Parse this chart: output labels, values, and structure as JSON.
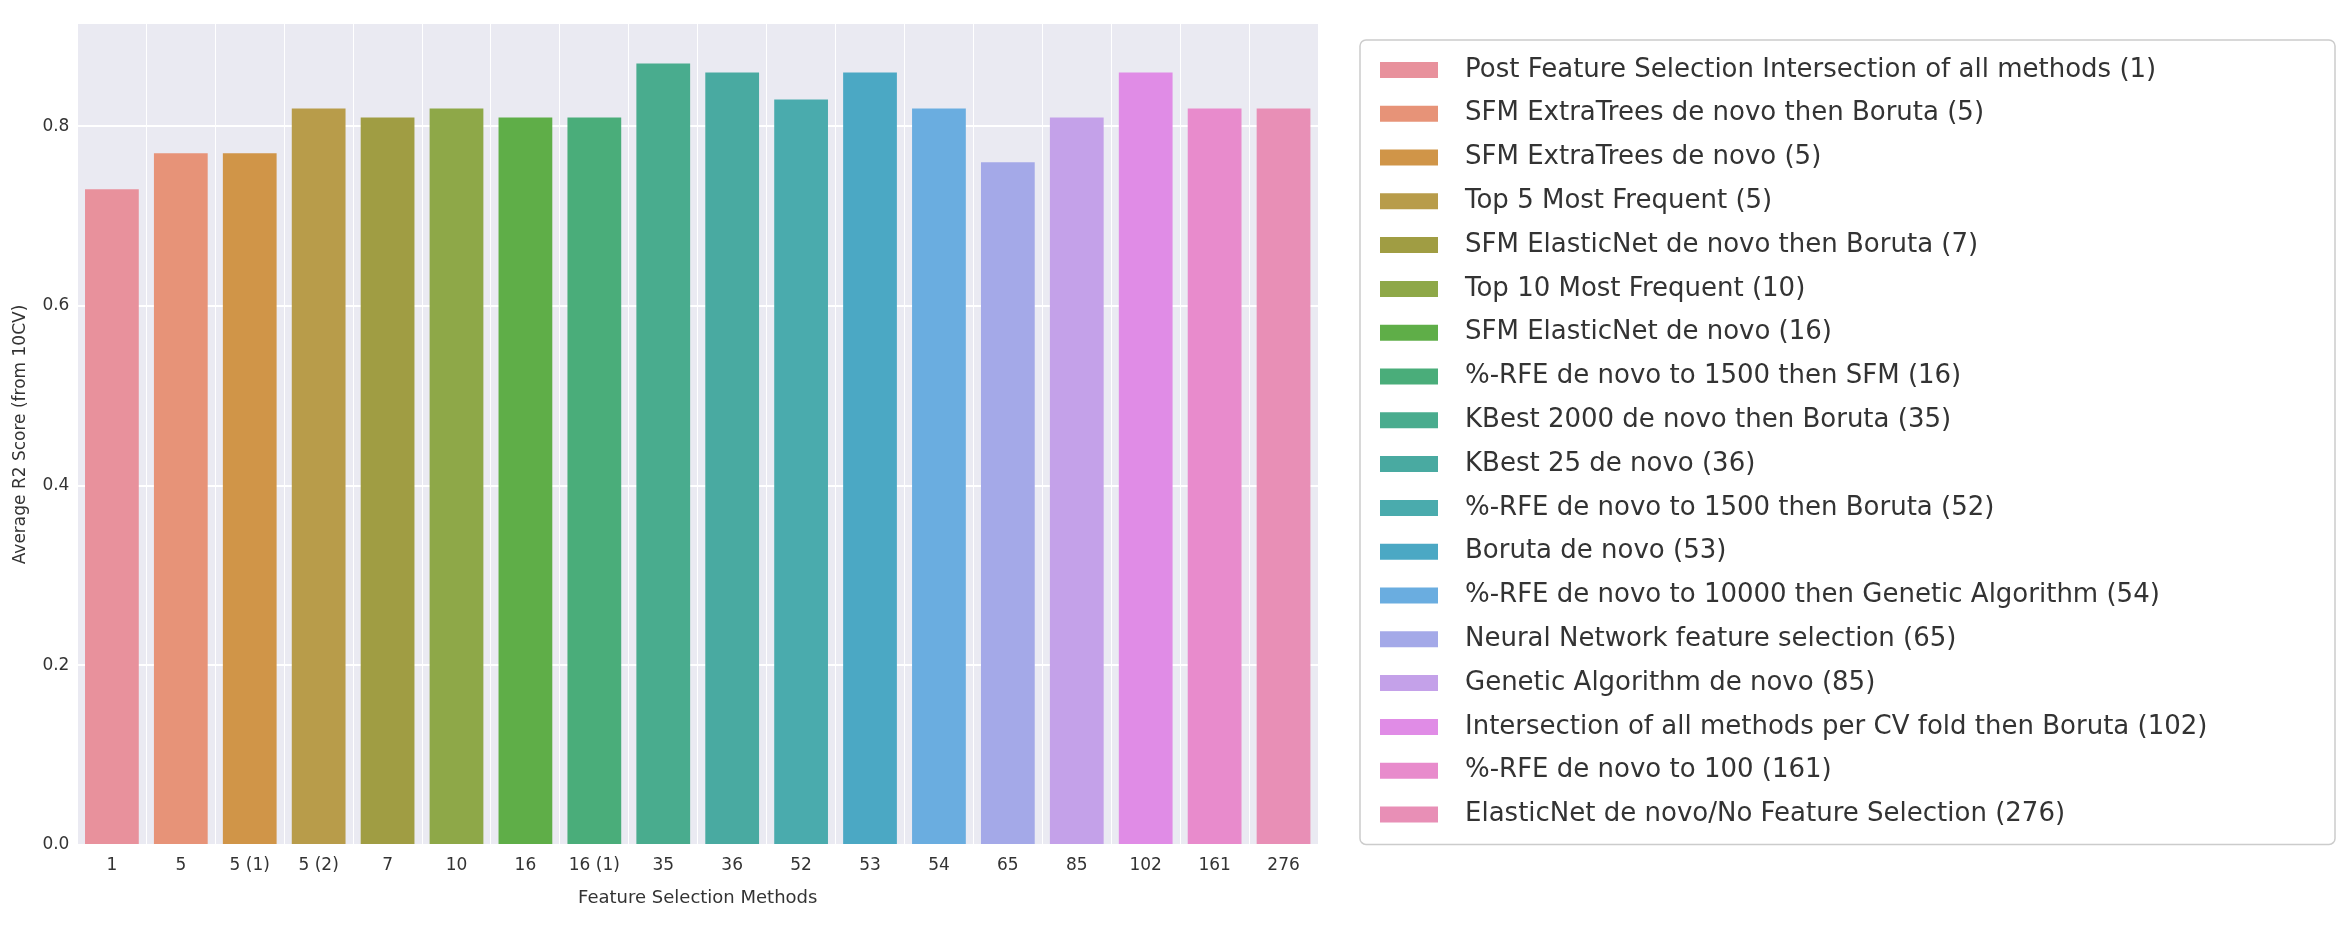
{
  "chart_data": {
    "type": "bar",
    "xlabel": "Feature Selection Methods",
    "ylabel": "Average R2 Score (from 10CV)",
    "categories": [
      "1",
      "5",
      "5 (1)",
      "5 (2)",
      "7",
      "10",
      "16",
      "16 (1)",
      "35",
      "36",
      "52",
      "53",
      "54",
      "65",
      "85",
      "102",
      "161",
      "276"
    ],
    "ylim": [
      0,
      0.914
    ],
    "yticks": [
      {
        "value": 0,
        "label": "0.0"
      },
      0.2,
      0.4,
      0.6,
      0.8
    ],
    "grid": true,
    "legend": "right",
    "series": [
      {
        "name": "Post Feature Selection Intersection of all methods (1)",
        "color": "#e8919c",
        "values": [
          0.73,
          null,
          null,
          null,
          null,
          null,
          null,
          null,
          null,
          null,
          null,
          null,
          null,
          null,
          null,
          null,
          null,
          null
        ]
      },
      {
        "name": "SFM ExtraTrees de novo then Boruta (5)",
        "color": "#e79378",
        "values": [
          null,
          0.77,
          null,
          null,
          null,
          null,
          null,
          null,
          null,
          null,
          null,
          null,
          null,
          null,
          null,
          null,
          null,
          null
        ]
      },
      {
        "name": "SFM ExtraTrees de novo (5)",
        "color": "#d09548",
        "values": [
          null,
          null,
          0.77,
          null,
          null,
          null,
          null,
          null,
          null,
          null,
          null,
          null,
          null,
          null,
          null,
          null,
          null,
          null
        ]
      },
      {
        "name": "Top 5 Most Frequent (5)",
        "color": "#b89c4a",
        "values": [
          null,
          null,
          null,
          0.82,
          null,
          null,
          null,
          null,
          null,
          null,
          null,
          null,
          null,
          null,
          null,
          null,
          null,
          null
        ]
      },
      {
        "name": "SFM ElasticNet de novo then Boruta (7)",
        "color": "#a09d43",
        "values": [
          null,
          null,
          null,
          null,
          0.81,
          null,
          null,
          null,
          null,
          null,
          null,
          null,
          null,
          null,
          null,
          null,
          null,
          null
        ]
      },
      {
        "name": "Top 10 Most Frequent (10)",
        "color": "#8ea848",
        "values": [
          null,
          null,
          null,
          null,
          null,
          0.82,
          null,
          null,
          null,
          null,
          null,
          null,
          null,
          null,
          null,
          null,
          null,
          null
        ]
      },
      {
        "name": "SFM ElasticNet de novo (16)",
        "color": "#5fae48",
        "values": [
          null,
          null,
          null,
          null,
          null,
          null,
          0.81,
          null,
          null,
          null,
          null,
          null,
          null,
          null,
          null,
          null,
          null,
          null
        ]
      },
      {
        "name": "%-RFE de novo to 1500 then SFM (16)",
        "color": "#4aad7a",
        "values": [
          null,
          null,
          null,
          null,
          null,
          null,
          null,
          0.81,
          null,
          null,
          null,
          null,
          null,
          null,
          null,
          null,
          null,
          null
        ]
      },
      {
        "name": "KBest 2000 de novo then Boruta (35)",
        "color": "#49ac8e",
        "values": [
          null,
          null,
          null,
          null,
          null,
          null,
          null,
          null,
          0.87,
          null,
          null,
          null,
          null,
          null,
          null,
          null,
          null,
          null
        ]
      },
      {
        "name": "KBest 25 de novo (36)",
        "color": "#49aaa1",
        "values": [
          null,
          null,
          null,
          null,
          null,
          null,
          null,
          null,
          null,
          0.86,
          null,
          null,
          null,
          null,
          null,
          null,
          null,
          null
        ]
      },
      {
        "name": "%-RFE de novo to 1500 then Boruta (52)",
        "color": "#4aabad",
        "values": [
          null,
          null,
          null,
          null,
          null,
          null,
          null,
          null,
          null,
          null,
          0.83,
          null,
          null,
          null,
          null,
          null,
          null,
          null
        ]
      },
      {
        "name": "Boruta de novo (53)",
        "color": "#4ba8c4",
        "values": [
          null,
          null,
          null,
          null,
          null,
          null,
          null,
          null,
          null,
          null,
          null,
          0.86,
          null,
          null,
          null,
          null,
          null,
          null
        ]
      },
      {
        "name": "%-RFE de novo to 10000 then Genetic Algorithm (54)",
        "color": "#6aade0",
        "values": [
          null,
          null,
          null,
          null,
          null,
          null,
          null,
          null,
          null,
          null,
          null,
          null,
          0.82,
          null,
          null,
          null,
          null,
          null
        ]
      },
      {
        "name": "Neural Network feature selection (65)",
        "color": "#a4a9e8",
        "values": [
          null,
          null,
          null,
          null,
          null,
          null,
          null,
          null,
          null,
          null,
          null,
          null,
          null,
          0.76,
          null,
          null,
          null,
          null
        ]
      },
      {
        "name": "Genetic Algorithm de novo (85)",
        "color": "#c4a1e9",
        "values": [
          null,
          null,
          null,
          null,
          null,
          null,
          null,
          null,
          null,
          null,
          null,
          null,
          null,
          null,
          0.81,
          null,
          null,
          null
        ]
      },
      {
        "name": "Intersection of all methods per CV fold then Boruta (102)",
        "color": "#e08ce6",
        "values": [
          null,
          null,
          null,
          null,
          null,
          null,
          null,
          null,
          null,
          null,
          null,
          null,
          null,
          null,
          null,
          0.86,
          null,
          null
        ]
      },
      {
        "name": "%-RFE de novo to 100 (161)",
        "color": "#e88bcc",
        "values": [
          null,
          null,
          null,
          null,
          null,
          null,
          null,
          null,
          null,
          null,
          null,
          null,
          null,
          null,
          null,
          null,
          0.82,
          null
        ]
      },
      {
        "name": "ElasticNet de novo/No Feature Selection (276)",
        "color": "#e88fb6",
        "values": [
          null,
          null,
          null,
          null,
          null,
          null,
          null,
          null,
          null,
          null,
          null,
          null,
          null,
          null,
          null,
          null,
          null,
          0.82
        ]
      }
    ]
  }
}
